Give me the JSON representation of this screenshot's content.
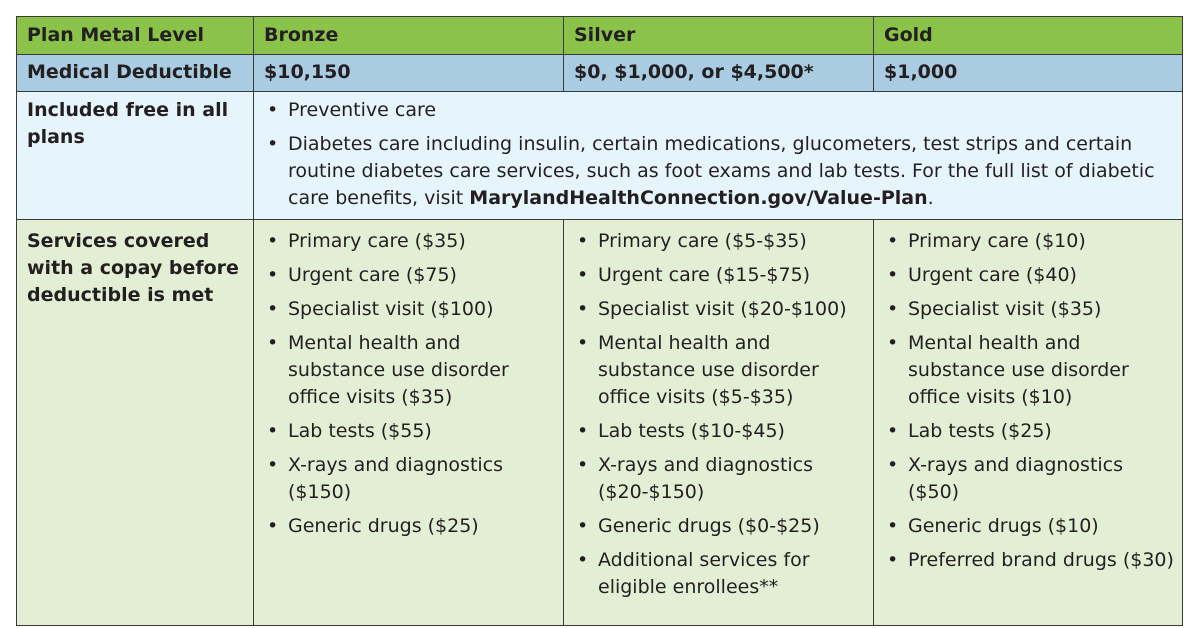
{
  "header": {
    "label": "Plan Metal Level",
    "bronze": "Bronze",
    "silver": "Silver",
    "gold": "Gold"
  },
  "deductible": {
    "label": "Medical Deductible",
    "bronze": "$10,150",
    "silver": "$0, $1,000, or $4,500*",
    "gold": "$1,000"
  },
  "free": {
    "label": "Included free in all plans",
    "item1": "Preventive care",
    "item2_prefix": "Diabetes care including insulin, certain medications, glucometers, test strips and certain routine diabetes care services, such as foot exams and lab tests. For the full list of diabetic care benefits, visit ",
    "item2_link": "MarylandHealthConnection.gov/Value-Plan",
    "item2_suffix": "."
  },
  "services": {
    "label": "Services covered with a copay before deductible is met",
    "bronze": [
      "Primary care ($35)",
      "Urgent care ($75)",
      "Specialist visit ($100)",
      "Mental health and substance use disorder office visits ($35)",
      "Lab tests ($55)",
      "X-rays and diagnostics ($150)",
      "Generic drugs ($25)"
    ],
    "silver": [
      "Primary care ($5-$35)",
      "Urgent care ($15-$75)",
      "Specialist visit ($20-$100)",
      "Mental health and substance use disorder office visits ($5-$35)",
      "Lab tests ($10-$45)",
      "X-rays and diagnostics ($20-$150)",
      " Generic drugs ($0-$25)",
      "Additional services for eligible enrollees**"
    ],
    "gold": [
      "Primary care ($10)",
      "Urgent care ($40)",
      "Specialist visit ($35)",
      "Mental health and substance use disorder office visits ($10)",
      "Lab tests ($25)",
      "X-rays and diagnostics ($50)",
      "Generic drugs ($10)",
      "Preferred brand drugs ($30)"
    ]
  }
}
